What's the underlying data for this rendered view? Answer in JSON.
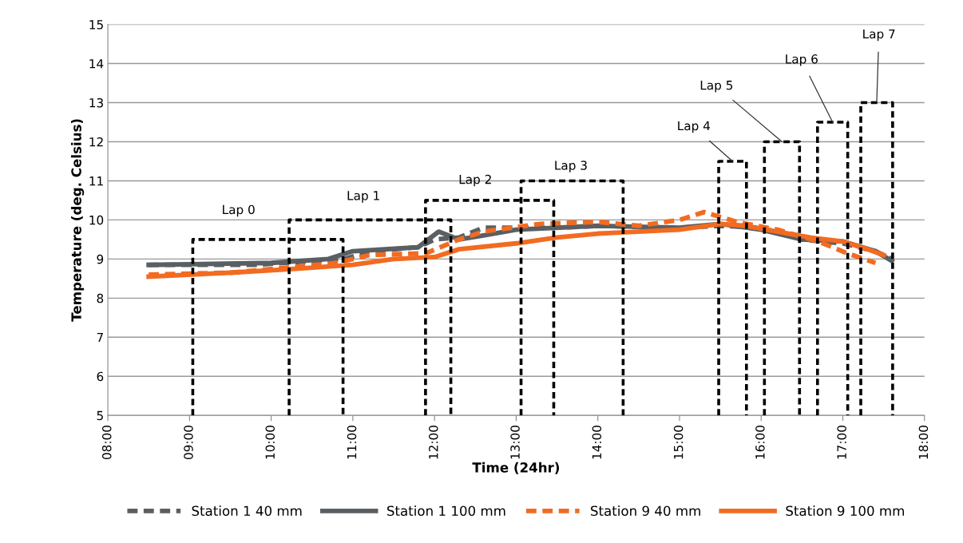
{
  "chart_data": {
    "type": "line",
    "xlabel": "Time (24hr)",
    "ylabel": "Temperature (deg. Celsius)",
    "xlim": [
      8,
      18
    ],
    "xticks": [
      {
        "value": 8,
        "label": "08:00"
      },
      {
        "value": 9,
        "label": "09:00"
      },
      {
        "value": 10,
        "label": "10:00"
      },
      {
        "value": 11,
        "label": "11:00"
      },
      {
        "value": 12,
        "label": "12:00"
      },
      {
        "value": 13,
        "label": "13:00"
      },
      {
        "value": 14,
        "label": "14:00"
      },
      {
        "value": 15,
        "label": "15:00"
      },
      {
        "value": 16,
        "label": "16:00"
      },
      {
        "value": 17,
        "label": "17:00"
      },
      {
        "value": 18,
        "label": "18:00"
      }
    ],
    "ylim": [
      5,
      15
    ],
    "yticks": [
      5,
      6,
      7,
      8,
      9,
      10,
      11,
      12,
      13,
      14,
      15
    ],
    "grid": "y",
    "legend": "bottom",
    "marker": "none",
    "series": [
      {
        "name": "Station 1 40 mm",
        "color": "#595f63",
        "line_style": "dashed",
        "x": [
          8.5,
          9.8,
          10.5,
          10.9,
          11.2,
          11.8,
          12.0,
          12.3,
          12.6,
          13.5,
          14,
          15,
          15.5,
          16,
          16.5,
          17,
          17.4,
          17.6
        ],
        "values": [
          8.85,
          8.85,
          8.95,
          9.0,
          9.2,
          9.3,
          9.5,
          9.55,
          9.8,
          9.8,
          9.85,
          9.8,
          9.85,
          9.8,
          9.5,
          9.4,
          9.2,
          9.0
        ]
      },
      {
        "name": "Station 1 100 mm",
        "color": "#595f63",
        "line_style": "solid",
        "x": [
          8.5,
          10.0,
          10.7,
          11.0,
          11.8,
          12.05,
          12.3,
          12.6,
          13,
          14,
          15,
          15.5,
          16,
          16.5,
          17,
          17.4,
          17.6
        ],
        "values": [
          8.85,
          8.9,
          9.0,
          9.2,
          9.3,
          9.7,
          9.5,
          9.6,
          9.75,
          9.85,
          9.8,
          9.9,
          9.75,
          9.5,
          9.45,
          9.2,
          8.95
        ]
      },
      {
        "name": "Station 9 40 mm",
        "color": "#f26b21",
        "line_style": "dashed",
        "x": [
          8.5,
          9.5,
          10.3,
          10.8,
          11.2,
          11.9,
          12.3,
          12.6,
          13.3,
          14,
          14.5,
          15.0,
          15.3,
          15.7,
          16.2,
          16.7,
          17.05,
          17.4
        ],
        "values": [
          8.6,
          8.65,
          8.8,
          8.9,
          9.1,
          9.15,
          9.5,
          9.7,
          9.9,
          9.95,
          9.85,
          10.0,
          10.2,
          9.95,
          9.75,
          9.45,
          9.15,
          8.9
        ]
      },
      {
        "name": "Station 9 100 mm",
        "color": "#f26b21",
        "line_style": "solid",
        "x": [
          8.5,
          9.5,
          10.3,
          11.0,
          11.5,
          12.0,
          12.3,
          13,
          13.5,
          14,
          15,
          15.5,
          15.8,
          16.2,
          16.6,
          17.0,
          17.3,
          17.5
        ],
        "values": [
          8.55,
          8.65,
          8.75,
          8.85,
          9.0,
          9.05,
          9.25,
          9.4,
          9.55,
          9.65,
          9.75,
          9.9,
          9.85,
          9.7,
          9.55,
          9.45,
          9.25,
          9.1
        ]
      },
      {
        "color": "#000000",
        "line_style": "dashed",
        "x": [
          9.04,
          9.04,
          10.88,
          10.88
        ],
        "values": [
          5,
          9.5,
          9.5,
          5
        ]
      },
      {
        "color": "#000000",
        "line_style": "dashed",
        "x": [
          10.22,
          10.22,
          12.2,
          12.2
        ],
        "values": [
          5,
          10,
          10,
          5
        ]
      },
      {
        "color": "#000000",
        "line_style": "dashed",
        "x": [
          11.89,
          11.89,
          13.46,
          13.46
        ],
        "values": [
          5,
          10.5,
          10.5,
          5
        ]
      },
      {
        "color": "#000000",
        "line_style": "dashed",
        "x": [
          13.06,
          13.06,
          14.31,
          14.31
        ],
        "values": [
          5,
          11,
          11,
          5
        ]
      },
      {
        "color": "#000000",
        "line_style": "dashed",
        "x": [
          15.48,
          15.48,
          15.82,
          15.82
        ],
        "values": [
          5,
          11.5,
          11.5,
          5
        ]
      },
      {
        "color": "#000000",
        "line_style": "dashed",
        "x": [
          16.04,
          16.04,
          16.47,
          16.47
        ],
        "values": [
          5,
          12,
          12,
          5
        ]
      },
      {
        "color": "#000000",
        "line_style": "dashed",
        "x": [
          16.69,
          16.69,
          17.06,
          17.06
        ],
        "values": [
          5,
          12.5,
          12.5,
          5
        ]
      },
      {
        "color": "#000000",
        "line_style": "dashed",
        "x": [
          17.22,
          17.22,
          17.61,
          17.61
        ],
        "values": [
          5,
          13,
          13,
          5
        ]
      }
    ],
    "annotations": [
      {
        "text": "Lap 0",
        "x": 9.6,
        "y": 9.5
      },
      {
        "text": "Lap 1",
        "x": 11.13,
        "y": 10
      },
      {
        "text": "Lap 2",
        "x": 12.5,
        "y": 10.5
      },
      {
        "text": "Lap 3",
        "x": 13.67,
        "y": 11
      },
      {
        "text": "Lap 4",
        "x": 15.65,
        "y": 11.5
      },
      {
        "text": "Lap 5",
        "x": 16.255,
        "y": 12
      },
      {
        "text": "Lap 6",
        "x": 16.875,
        "y": 12.5
      },
      {
        "text": "Lap 7",
        "x": 17.415,
        "y": 13
      }
    ]
  }
}
